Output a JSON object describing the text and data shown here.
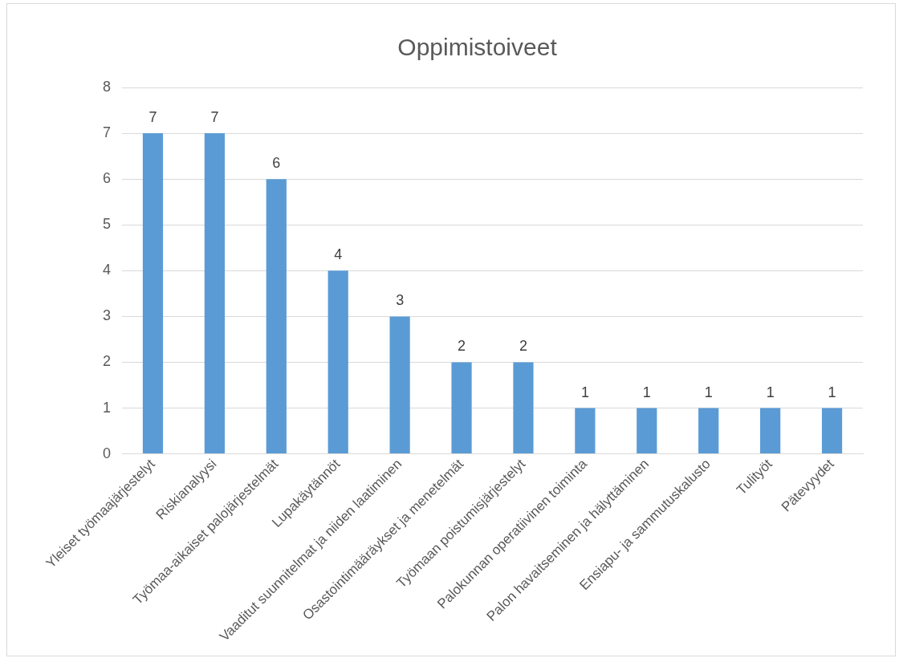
{
  "chart_data": {
    "type": "bar",
    "title": "Oppimistoiveet",
    "categories": [
      "Yleiset työmaajärjestelyt",
      "Riskianalyysi",
      "Työmaa-aikaiset palojärjestelmät",
      "Lupakäytännöt",
      "Vaaditut suunnitelmat ja niiden laatiminen",
      "Osastointimääräykset ja menetelmät",
      "Työmaan poistumisjärjestelyt",
      "Palokunnan operatiivinen toiminta",
      "Palon havaitseminen ja hälyttäminen",
      "Ensiapu- ja sammutuskalusto",
      "Tulityöt",
      "Pätevyydet"
    ],
    "values": [
      7,
      7,
      6,
      4,
      3,
      2,
      2,
      1,
      1,
      1,
      1,
      1
    ],
    "color": "#5b9bd5",
    "ylim": [
      0,
      8
    ],
    "yticks": [
      0,
      1,
      2,
      3,
      4,
      5,
      6,
      7,
      8
    ],
    "grid": "y",
    "data_labels": true
  }
}
